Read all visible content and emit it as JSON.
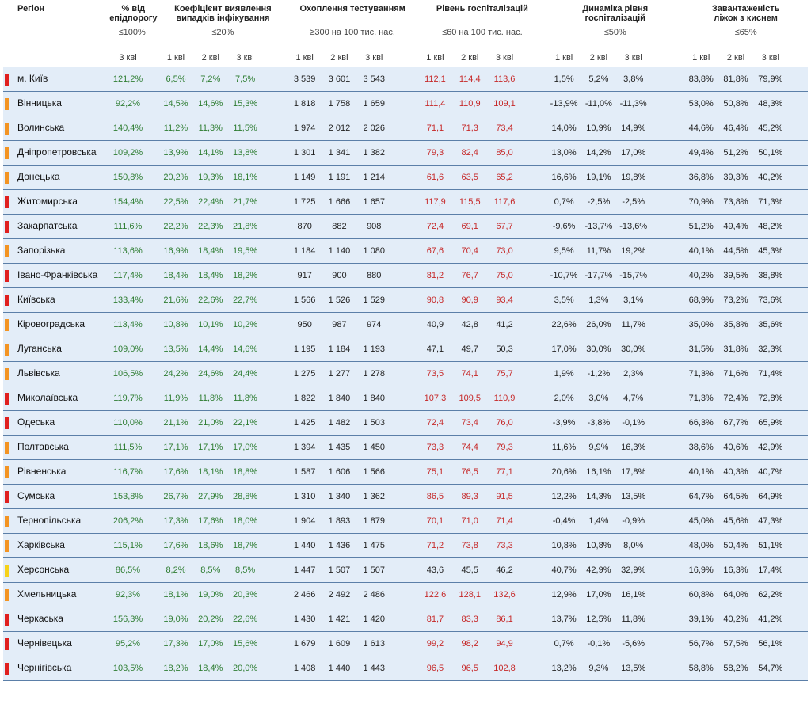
{
  "headers": {
    "region": "Регіон",
    "epid": {
      "title": "% від епідпорогу",
      "threshold": "≤100%"
    },
    "coef": {
      "title": "Коефіцієнт виявлення випадків інфікування",
      "threshold": "≤20%"
    },
    "testing": {
      "title": "Охоплення тестуванням",
      "threshold": "≥300 на 100 тис. нас."
    },
    "hosp": {
      "title": "Рівень госпіталізацій",
      "threshold": "≤60 на 100 тис. нас."
    },
    "dyn": {
      "title": "Динаміка рівня госпіталізацій",
      "threshold": "≤50%"
    },
    "beds": {
      "title": "Завантаженість ліжок з киснем",
      "threshold": "≤65%"
    }
  },
  "quarters": {
    "q1": "1 кві",
    "q2": "2 кві",
    "q3": "3 кві"
  },
  "colors": {
    "red": "#e0201f",
    "orange": "#f39423",
    "yellow": "#f6d21a",
    "green_text": "#2e7d32",
    "red_text": "#c62828",
    "row_tint": "#e3edf8"
  },
  "rows": [
    {
      "region": "м. Київ",
      "marker": "red",
      "epid": "121,2%",
      "coef": [
        "6,5%",
        "7,2%",
        "7,5%"
      ],
      "test": [
        "3 539",
        "3 601",
        "3 543"
      ],
      "hosp": [
        "112,1",
        "114,4",
        "113,6"
      ],
      "dyn": [
        "1,5%",
        "5,2%",
        "3,8%"
      ],
      "beds": [
        "83,8%",
        "81,8%",
        "79,9%"
      ]
    },
    {
      "region": "Вінницька",
      "marker": "orange",
      "epid": "92,2%",
      "coef": [
        "14,5%",
        "14,6%",
        "15,3%"
      ],
      "test": [
        "1 818",
        "1 758",
        "1 659"
      ],
      "hosp": [
        "111,4",
        "110,9",
        "109,1"
      ],
      "dyn": [
        "-13,9%",
        "-11,0%",
        "-11,3%"
      ],
      "beds": [
        "53,0%",
        "50,8%",
        "48,3%"
      ]
    },
    {
      "region": "Волинська",
      "marker": "orange",
      "epid": "140,4%",
      "coef": [
        "11,2%",
        "11,3%",
        "11,5%"
      ],
      "test": [
        "1 974",
        "2 012",
        "2 026"
      ],
      "hosp": [
        "71,1",
        "71,3",
        "73,4"
      ],
      "dyn": [
        "14,0%",
        "10,9%",
        "14,9%"
      ],
      "beds": [
        "44,6%",
        "46,4%",
        "45,2%"
      ]
    },
    {
      "region": "Дніпропетровська",
      "marker": "orange",
      "epid": "109,2%",
      "coef": [
        "13,9%",
        "14,1%",
        "13,8%"
      ],
      "test": [
        "1 301",
        "1 341",
        "1 382"
      ],
      "hosp": [
        "79,3",
        "82,4",
        "85,0"
      ],
      "dyn": [
        "13,0%",
        "14,2%",
        "17,0%"
      ],
      "beds": [
        "49,4%",
        "51,2%",
        "50,1%"
      ]
    },
    {
      "region": "Донецька",
      "marker": "orange",
      "epid": "150,8%",
      "coef": [
        "20,2%",
        "19,3%",
        "18,1%"
      ],
      "test": [
        "1 149",
        "1 191",
        "1 214"
      ],
      "hosp": [
        "61,6",
        "63,5",
        "65,2"
      ],
      "dyn": [
        "16,6%",
        "19,1%",
        "19,8%"
      ],
      "beds": [
        "36,8%",
        "39,3%",
        "40,2%"
      ]
    },
    {
      "region": "Житомирська",
      "marker": "red",
      "epid": "154,4%",
      "coef": [
        "22,5%",
        "22,4%",
        "21,7%"
      ],
      "test": [
        "1 725",
        "1 666",
        "1 657"
      ],
      "hosp": [
        "117,9",
        "115,5",
        "117,6"
      ],
      "dyn": [
        "0,7%",
        "-2,5%",
        "-2,5%"
      ],
      "beds": [
        "70,9%",
        "73,8%",
        "71,3%"
      ]
    },
    {
      "region": "Закарпатська",
      "marker": "red",
      "epid": "111,6%",
      "coef": [
        "22,2%",
        "22,3%",
        "21,8%"
      ],
      "test": [
        "870",
        "882",
        "908"
      ],
      "hosp": [
        "72,4",
        "69,1",
        "67,7"
      ],
      "dyn": [
        "-9,6%",
        "-13,7%",
        "-13,6%"
      ],
      "beds": [
        "51,2%",
        "49,4%",
        "48,2%"
      ]
    },
    {
      "region": "Запорізька",
      "marker": "orange",
      "epid": "113,6%",
      "coef": [
        "16,9%",
        "18,4%",
        "19,5%"
      ],
      "test": [
        "1 184",
        "1 140",
        "1 080"
      ],
      "hosp": [
        "67,6",
        "70,4",
        "73,0"
      ],
      "dyn": [
        "9,5%",
        "11,7%",
        "19,2%"
      ],
      "beds": [
        "40,1%",
        "44,5%",
        "45,3%"
      ]
    },
    {
      "region": "Івано-Франківська",
      "marker": "red",
      "epid": "117,4%",
      "coef": [
        "18,4%",
        "18,4%",
        "18,2%"
      ],
      "test": [
        "917",
        "900",
        "880"
      ],
      "hosp": [
        "81,2",
        "76,7",
        "75,0"
      ],
      "dyn": [
        "-10,7%",
        "-17,7%",
        "-15,7%"
      ],
      "beds": [
        "40,2%",
        "39,5%",
        "38,8%"
      ]
    },
    {
      "region": "Київська",
      "marker": "red",
      "epid": "133,4%",
      "coef": [
        "21,6%",
        "22,6%",
        "22,7%"
      ],
      "test": [
        "1 566",
        "1 526",
        "1 529"
      ],
      "hosp": [
        "90,8",
        "90,9",
        "93,4"
      ],
      "dyn": [
        "3,5%",
        "1,3%",
        "3,1%"
      ],
      "beds": [
        "68,9%",
        "73,2%",
        "73,6%"
      ]
    },
    {
      "region": "Кіровоградська",
      "marker": "orange",
      "epid": "113,4%",
      "coef": [
        "10,8%",
        "10,1%",
        "10,2%"
      ],
      "test": [
        "950",
        "987",
        "974"
      ],
      "hosp": [
        "40,9",
        "42,8",
        "41,2"
      ],
      "dyn": [
        "22,6%",
        "26,0%",
        "11,7%"
      ],
      "beds": [
        "35,0%",
        "35,8%",
        "35,6%"
      ]
    },
    {
      "region": "Луганська",
      "marker": "orange",
      "epid": "109,0%",
      "coef": [
        "13,5%",
        "14,4%",
        "14,6%"
      ],
      "test": [
        "1 195",
        "1 184",
        "1 193"
      ],
      "hosp": [
        "47,1",
        "49,7",
        "50,3"
      ],
      "dyn": [
        "17,0%",
        "30,0%",
        "30,0%"
      ],
      "beds": [
        "31,5%",
        "31,8%",
        "32,3%"
      ]
    },
    {
      "region": "Львівська",
      "marker": "orange",
      "epid": "106,5%",
      "coef": [
        "24,2%",
        "24,6%",
        "24,4%"
      ],
      "test": [
        "1 275",
        "1 277",
        "1 278"
      ],
      "hosp": [
        "73,5",
        "74,1",
        "75,7"
      ],
      "dyn": [
        "1,9%",
        "-1,2%",
        "2,3%"
      ],
      "beds": [
        "71,3%",
        "71,6%",
        "71,4%"
      ]
    },
    {
      "region": "Миколаївська",
      "marker": "red",
      "epid": "119,7%",
      "coef": [
        "11,9%",
        "11,8%",
        "11,8%"
      ],
      "test": [
        "1 822",
        "1 840",
        "1 840"
      ],
      "hosp": [
        "107,3",
        "109,5",
        "110,9"
      ],
      "dyn": [
        "2,0%",
        "3,0%",
        "4,7%"
      ],
      "beds": [
        "71,3%",
        "72,4%",
        "72,8%"
      ]
    },
    {
      "region": "Одеська",
      "marker": "red",
      "epid": "110,0%",
      "coef": [
        "21,1%",
        "21,0%",
        "22,1%"
      ],
      "test": [
        "1 425",
        "1 482",
        "1 503"
      ],
      "hosp": [
        "72,4",
        "73,4",
        "76,0"
      ],
      "dyn": [
        "-3,9%",
        "-3,8%",
        "-0,1%"
      ],
      "beds": [
        "66,3%",
        "67,7%",
        "65,9%"
      ]
    },
    {
      "region": "Полтавська",
      "marker": "orange",
      "epid": "111,5%",
      "coef": [
        "17,1%",
        "17,1%",
        "17,0%"
      ],
      "test": [
        "1 394",
        "1 435",
        "1 450"
      ],
      "hosp": [
        "73,3",
        "74,4",
        "79,3"
      ],
      "dyn": [
        "11,6%",
        "9,9%",
        "16,3%"
      ],
      "beds": [
        "38,6%",
        "40,6%",
        "42,9%"
      ]
    },
    {
      "region": "Рівненська",
      "marker": "orange",
      "epid": "116,7%",
      "coef": [
        "17,6%",
        "18,1%",
        "18,8%"
      ],
      "test": [
        "1 587",
        "1 606",
        "1 566"
      ],
      "hosp": [
        "75,1",
        "76,5",
        "77,1"
      ],
      "dyn": [
        "20,6%",
        "16,1%",
        "17,8%"
      ],
      "beds": [
        "40,1%",
        "40,3%",
        "40,7%"
      ]
    },
    {
      "region": "Сумська",
      "marker": "red",
      "epid": "153,8%",
      "coef": [
        "26,7%",
        "27,9%",
        "28,8%"
      ],
      "test": [
        "1 310",
        "1 340",
        "1 362"
      ],
      "hosp": [
        "86,5",
        "89,3",
        "91,5"
      ],
      "dyn": [
        "12,2%",
        "14,3%",
        "13,5%"
      ],
      "beds": [
        "64,7%",
        "64,5%",
        "64,9%"
      ]
    },
    {
      "region": "Тернопільська",
      "marker": "orange",
      "epid": "206,2%",
      "coef": [
        "17,3%",
        "17,6%",
        "18,0%"
      ],
      "test": [
        "1 904",
        "1 893",
        "1 879"
      ],
      "hosp": [
        "70,1",
        "71,0",
        "71,4"
      ],
      "dyn": [
        "-0,4%",
        "1,4%",
        "-0,9%"
      ],
      "beds": [
        "45,0%",
        "45,6%",
        "47,3%"
      ]
    },
    {
      "region": "Харківська",
      "marker": "orange",
      "epid": "115,1%",
      "coef": [
        "17,6%",
        "18,6%",
        "18,7%"
      ],
      "test": [
        "1 440",
        "1 436",
        "1 475"
      ],
      "hosp": [
        "71,2",
        "73,8",
        "73,3"
      ],
      "dyn": [
        "10,8%",
        "10,8%",
        "8,0%"
      ],
      "beds": [
        "48,0%",
        "50,4%",
        "51,1%"
      ]
    },
    {
      "region": "Херсонська",
      "marker": "yellow",
      "epid": "86,5%",
      "coef": [
        "8,2%",
        "8,5%",
        "8,5%"
      ],
      "test": [
        "1 447",
        "1 507",
        "1 507"
      ],
      "hosp": [
        "43,6",
        "45,5",
        "46,2"
      ],
      "dyn": [
        "40,7%",
        "42,9%",
        "32,9%"
      ],
      "beds": [
        "16,9%",
        "16,3%",
        "17,4%"
      ]
    },
    {
      "region": "Хмельницька",
      "marker": "orange",
      "epid": "92,3%",
      "coef": [
        "18,1%",
        "19,0%",
        "20,3%"
      ],
      "test": [
        "2 466",
        "2 492",
        "2 486"
      ],
      "hosp": [
        "122,6",
        "128,1",
        "132,6"
      ],
      "dyn": [
        "12,9%",
        "17,0%",
        "16,1%"
      ],
      "beds": [
        "60,8%",
        "64,0%",
        "62,2%"
      ]
    },
    {
      "region": "Черкаська",
      "marker": "red",
      "epid": "156,3%",
      "coef": [
        "19,0%",
        "20,2%",
        "22,6%"
      ],
      "test": [
        "1 430",
        "1 421",
        "1 420"
      ],
      "hosp": [
        "81,7",
        "83,3",
        "86,1"
      ],
      "dyn": [
        "13,7%",
        "12,5%",
        "11,8%"
      ],
      "beds": [
        "39,1%",
        "40,2%",
        "41,2%"
      ]
    },
    {
      "region": "Чернівецька",
      "marker": "red",
      "epid": "95,2%",
      "coef": [
        "17,3%",
        "17,0%",
        "15,6%"
      ],
      "test": [
        "1 679",
        "1 609",
        "1 613"
      ],
      "hosp": [
        "99,2",
        "98,2",
        "94,9"
      ],
      "dyn": [
        "0,7%",
        "-0,1%",
        "-5,6%"
      ],
      "beds": [
        "56,7%",
        "57,5%",
        "56,1%"
      ]
    },
    {
      "region": "Чернігівська",
      "marker": "red",
      "epid": "103,5%",
      "coef": [
        "18,2%",
        "18,4%",
        "20,0%"
      ],
      "test": [
        "1 408",
        "1 440",
        "1 443"
      ],
      "hosp": [
        "96,5",
        "96,5",
        "102,8"
      ],
      "dyn": [
        "13,2%",
        "9,3%",
        "13,5%"
      ],
      "beds": [
        "58,8%",
        "58,2%",
        "54,7%"
      ]
    }
  ]
}
